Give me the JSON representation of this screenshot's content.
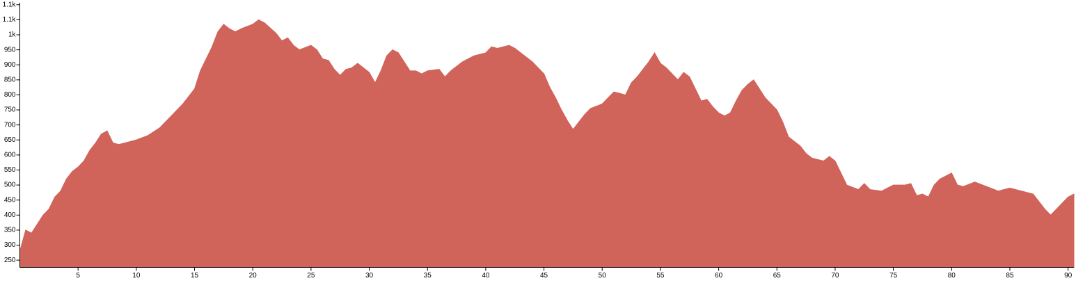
{
  "chart_data": {
    "type": "area",
    "x": [
      0,
      0.5,
      1,
      1.5,
      2,
      2.5,
      3,
      3.5,
      4,
      4.5,
      5,
      5.5,
      6,
      6.5,
      7,
      7.5,
      8,
      8.5,
      9,
      10,
      11,
      12,
      13,
      14,
      15,
      15.5,
      16,
      16.5,
      17,
      17.5,
      18,
      18.5,
      19,
      20,
      20.5,
      21,
      22,
      22.5,
      23,
      23.5,
      24,
      25,
      25.5,
      26,
      26.5,
      27,
      27.5,
      28,
      28.5,
      29,
      30,
      30.5,
      31,
      31.5,
      32,
      32.5,
      33,
      33.5,
      34,
      34.5,
      35,
      36,
      36.5,
      37,
      38,
      39,
      40,
      40.5,
      41,
      42,
      42.5,
      43,
      44,
      45,
      45.5,
      46,
      46.5,
      47,
      47.5,
      48,
      48.5,
      49,
      50,
      50.5,
      51,
      52,
      52.5,
      53,
      54,
      54.5,
      55,
      55.5,
      56,
      56.5,
      57,
      57.5,
      58,
      58.5,
      59,
      59.5,
      60,
      60.5,
      61,
      61.5,
      62,
      62.5,
      63,
      63.5,
      64,
      65,
      65.5,
      66,
      67,
      67.5,
      68,
      69,
      69.5,
      70,
      70.5,
      71,
      72,
      72.5,
      73,
      74,
      75,
      76,
      76.5,
      77,
      77.5,
      78,
      78.5,
      79,
      80,
      80.5,
      81,
      82,
      83,
      84,
      85,
      86,
      86.5,
      87,
      87.5,
      88,
      88.5,
      89,
      90,
      90.5
    ],
    "series": [
      {
        "color": "#d0635a",
        "values": [
          280,
          350,
          340,
          370,
          400,
          420,
          460,
          480,
          520,
          545,
          560,
          580,
          615,
          640,
          670,
          680,
          640,
          635,
          640,
          650,
          665,
          690,
          730,
          770,
          820,
          880,
          920,
          960,
          1010,
          1035,
          1020,
          1010,
          1020,
          1035,
          1050,
          1040,
          1005,
          980,
          990,
          965,
          950,
          965,
          950,
          920,
          915,
          885,
          865,
          885,
          890,
          905,
          875,
          840,
          880,
          930,
          950,
          940,
          910,
          880,
          880,
          870,
          880,
          885,
          860,
          880,
          910,
          930,
          940,
          960,
          955,
          965,
          955,
          940,
          910,
          870,
          825,
          790,
          750,
          715,
          685,
          710,
          735,
          755,
          770,
          790,
          810,
          800,
          840,
          860,
          910,
          940,
          905,
          890,
          870,
          850,
          875,
          860,
          820,
          780,
          785,
          760,
          740,
          730,
          740,
          780,
          815,
          835,
          850,
          820,
          790,
          750,
          710,
          660,
          630,
          605,
          590,
          580,
          595,
          580,
          540,
          500,
          485,
          505,
          485,
          480,
          500,
          500,
          505,
          465,
          470,
          460,
          500,
          520,
          540,
          500,
          495,
          510,
          495,
          480,
          490,
          480,
          475,
          470,
          445,
          420,
          400,
          420,
          460,
          470
        ]
      }
    ],
    "xlim": [
      0,
      90.5
    ],
    "ylim": [
      226,
      1100
    ],
    "xticks": [
      5,
      10,
      15,
      20,
      25,
      30,
      35,
      40,
      45,
      50,
      55,
      60,
      65,
      70,
      75,
      80,
      85,
      90
    ],
    "yticks": [
      250,
      300,
      350,
      400,
      450,
      500,
      550,
      600,
      650,
      700,
      750,
      800,
      850,
      900,
      950,
      {
        "value": 1000,
        "label": "1k"
      },
      {
        "value": 1050,
        "label": "1.1k"
      },
      {
        "value": 1100,
        "label": "1.1k"
      }
    ]
  }
}
